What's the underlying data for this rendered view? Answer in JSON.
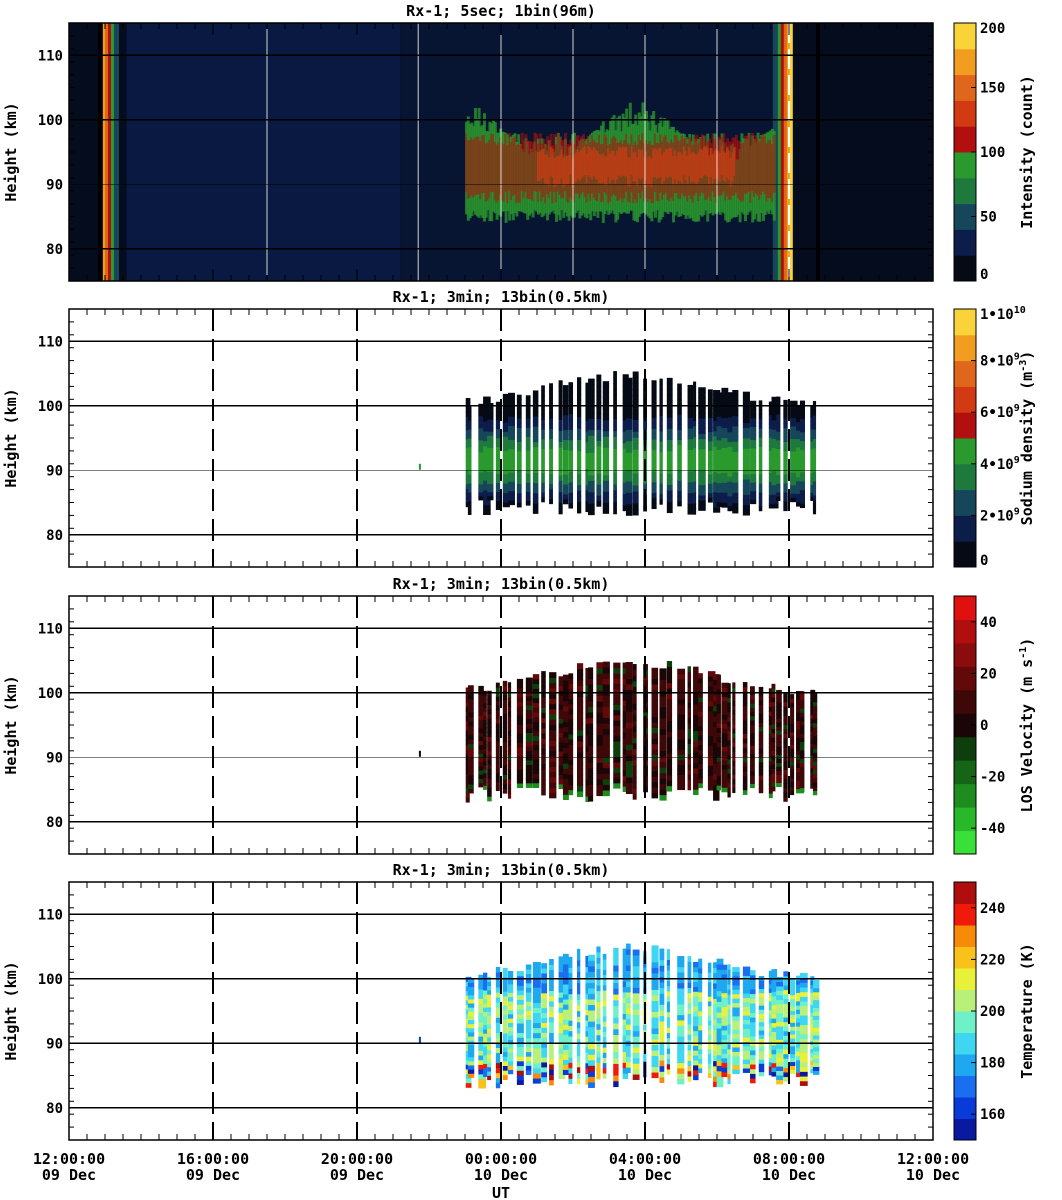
{
  "chart_data": {
    "type": "heatmap",
    "x_axis": {
      "label": "UT",
      "range": [
        0,
        24
      ],
      "units_note_hours_since": "12:00:00 09 Dec",
      "ticks": [
        {
          "h": 0,
          "time": "12:00:00",
          "date": "09 Dec"
        },
        {
          "h": 4,
          "time": "16:00:00",
          "date": "09 Dec"
        },
        {
          "h": 8,
          "time": "20:00:00",
          "date": "09 Dec"
        },
        {
          "h": 12,
          "time": "00:00:00",
          "date": "10 Dec"
        },
        {
          "h": 16,
          "time": "04:00:00",
          "date": "10 Dec"
        },
        {
          "h": 20,
          "time": "08:00:00",
          "date": "10 Dec"
        },
        {
          "h": 24,
          "time": "12:00:00",
          "date": "10 Dec"
        }
      ]
    },
    "panels": [
      {
        "id": "intensity",
        "title": "Rx-1;  5sec; 1bin(96m)",
        "ylabel": "Height (km)",
        "ylim": [
          75,
          115
        ],
        "yticks": [
          80,
          90,
          100,
          110
        ],
        "colorbar": {
          "label": "Intensity (count)",
          "range": [
            0,
            200
          ],
          "ticks": [
            "0",
            "50",
            "100",
            "150",
            "200"
          ],
          "colors": [
            "#050a14",
            "#0d1d4a",
            "#16465a",
            "#1e7a3c",
            "#2b9a2e",
            "#b20f0f",
            "#d23a14",
            "#e0661c",
            "#f19e20",
            "#f8d43a"
          ]
        }
      },
      {
        "id": "sodium",
        "title": "Rx-1; 3min; 13bin(0.5km)",
        "ylabel": "Height (km)",
        "ylim": [
          75,
          115
        ],
        "yticks": [
          80,
          90,
          100,
          110
        ],
        "colorbar": {
          "label": "Sodium density (m",
          "label_sup": "-3",
          "label_end": ")",
          "range": [
            0,
            10
          ],
          "ticks": [
            {
              "base": "0",
              "sup": ""
            },
            {
              "base": "2•10",
              "sup": "9"
            },
            {
              "base": "4•10",
              "sup": "9"
            },
            {
              "base": "6•10",
              "sup": "9"
            },
            {
              "base": "8•10",
              "sup": "9"
            },
            {
              "base": "1•10",
              "sup": "10"
            }
          ],
          "colors": [
            "#050a14",
            "#0d1d4a",
            "#16465a",
            "#1e7a3c",
            "#2b9a2e",
            "#b20f0f",
            "#d23a14",
            "#e0661c",
            "#f19e20",
            "#f8d43a"
          ]
        }
      },
      {
        "id": "velocity",
        "title": "Rx-1; 3min; 13bin(0.5km)",
        "ylabel": "Height (km)",
        "ylim": [
          75,
          115
        ],
        "yticks": [
          80,
          90,
          100,
          110
        ],
        "colorbar": {
          "label": "LOS Velocity (m s",
          "label_sup": "-1",
          "label_end": ")",
          "range": [
            -50,
            50
          ],
          "ticks": [
            "-40",
            "-20",
            "0",
            "20",
            "40"
          ],
          "colors": [
            "#38e038",
            "#29b829",
            "#1f8c1f",
            "#166416",
            "#0e3e0e",
            "#1a0606",
            "#3e0808",
            "#620a0a",
            "#8a0c0c",
            "#b20e0e",
            "#e01010"
          ]
        }
      },
      {
        "id": "temperature",
        "title": "Rx-1; 3min; 13bin(0.5km)",
        "ylabel": "Height (km)",
        "ylim": [
          75,
          115
        ],
        "yticks": [
          80,
          90,
          100,
          110
        ],
        "colorbar": {
          "label": "Temperature (K)",
          "range": [
            150,
            250
          ],
          "ticks": [
            "160",
            "180",
            "200",
            "220",
            "240"
          ],
          "colors": [
            "#0a1aa0",
            "#0a3ad8",
            "#1a6ef0",
            "#1ea8f0",
            "#3ed6f0",
            "#6ef0c8",
            "#b8f07a",
            "#e8f03a",
            "#f8c21a",
            "#f88a0a",
            "#f01a0a",
            "#b00e0e"
          ]
        }
      }
    ],
    "data_summary": {
      "intensity_twilight_bands_h": [
        1.0,
        19.8
      ],
      "intensity_layer_span_h": [
        11.0,
        19.6
      ],
      "profile_span_h": [
        11.0,
        20.7
      ],
      "layer_height_km": {
        "bottom": 84,
        "peak": 92,
        "top": 104
      }
    }
  }
}
